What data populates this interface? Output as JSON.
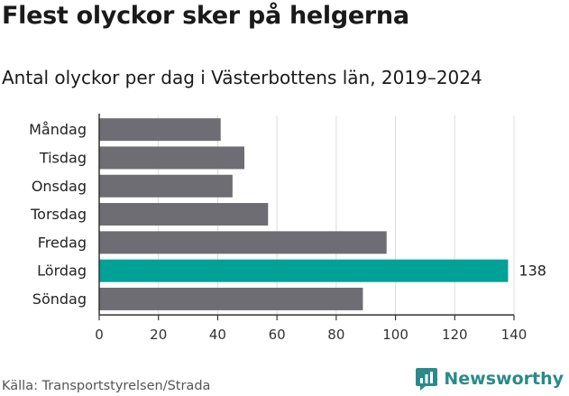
{
  "title": "Flest olyckor sker på helgerna",
  "subtitle": "Antal olyckor per dag i Västerbottens län, 2019–2024",
  "source": "Källa: Transportstyrelsen/Strada",
  "brand": {
    "name": "Newsworthy",
    "icon": "newsworthy-chart-bubble-icon",
    "color": "#2a8a8a"
  },
  "colors": {
    "bar": "#6e6d73",
    "highlight": "#00a196",
    "grid": "#dddddd",
    "axis": "#333333"
  },
  "chart_data": {
    "type": "bar",
    "orientation": "horizontal",
    "categories": [
      "Måndag",
      "Tisdag",
      "Onsdag",
      "Torsdag",
      "Fredag",
      "Lördag",
      "Söndag"
    ],
    "values": [
      41,
      49,
      45,
      57,
      97,
      138,
      89
    ],
    "highlight_index": 5,
    "data_labels": [
      {
        "index": 5,
        "text": "138"
      }
    ],
    "xlim": [
      0,
      140
    ],
    "xticks": [
      0,
      20,
      40,
      60,
      80,
      100,
      120,
      140
    ],
    "grid": "vertical"
  }
}
